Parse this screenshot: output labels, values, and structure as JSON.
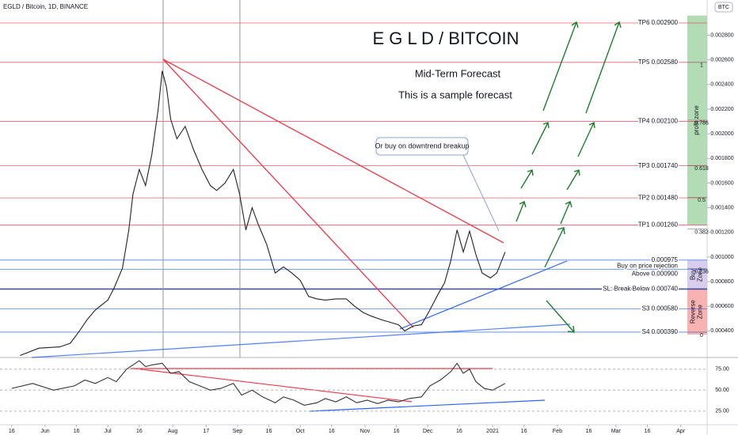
{
  "chart_data": [
    {
      "type": "line",
      "header": "EGLD / Bitcoin, 1D, BINANCE",
      "title": "E G L D / BITCOIN",
      "subtitle": [
        "Mid-Term Forecast",
        "This is a sample forecast"
      ],
      "currency": "BTC",
      "annotation": "Or buy on downtrend breakup",
      "color": "#222222",
      "x": [
        4,
        13,
        23,
        28,
        32,
        36,
        40,
        46,
        49,
        53,
        56,
        58,
        61,
        64,
        67,
        70,
        72,
        74,
        76,
        79,
        83,
        87,
        91,
        95,
        98,
        102,
        106,
        109,
        112,
        115,
        118,
        122,
        126,
        130,
        134,
        138,
        142,
        146,
        150,
        155,
        160,
        164,
        168,
        172,
        177,
        181,
        185,
        188,
        192,
        196,
        200,
        204,
        207,
        210,
        213,
        216,
        219,
        222,
        225,
        229,
        232,
        236
      ],
      "values": [
        0.0002,
        0.00026,
        0.00027,
        0.0003,
        0.00039,
        0.00049,
        0.00057,
        0.00065,
        0.00075,
        0.00091,
        0.00122,
        0.00151,
        0.00171,
        0.00158,
        0.00183,
        0.00219,
        0.00251,
        0.00238,
        0.00212,
        0.00196,
        0.00206,
        0.00187,
        0.00171,
        0.00158,
        0.00154,
        0.0016,
        0.00171,
        0.00151,
        0.00122,
        0.0014,
        0.00126,
        0.0011,
        0.00087,
        0.00092,
        0.00087,
        0.00081,
        0.00068,
        0.00066,
        0.00065,
        0.00066,
        0.00066,
        0.0006,
        0.00055,
        0.00052,
        0.00049,
        0.00047,
        0.00045,
        0.0004,
        0.00044,
        0.00045,
        0.00057,
        0.0007,
        0.00079,
        0.00097,
        0.00122,
        0.00104,
        0.00121,
        0.00102,
        0.00087,
        0.00083,
        0.00087,
        0.00104
      ],
      "xlim": [
        -5.6,
        332.6
      ],
      "ylim": [
        0.000197,
        0.003086
      ],
      "xticks": [
        {
          "value": 0,
          "label": "16"
        },
        {
          "value": 16,
          "label": "Jun"
        },
        {
          "value": 31,
          "label": "16"
        },
        {
          "value": 46,
          "label": "Jul"
        },
        {
          "value": 61,
          "label": "16"
        },
        {
          "value": 77,
          "label": "Aug"
        },
        {
          "value": 93,
          "label": "17"
        },
        {
          "value": 108,
          "label": "Sep"
        },
        {
          "value": 123,
          "label": "16"
        },
        {
          "value": 138,
          "label": "Oct"
        },
        {
          "value": 153,
          "label": "16"
        },
        {
          "value": 169,
          "label": "Nov"
        },
        {
          "value": 184,
          "label": "16"
        },
        {
          "value": 199,
          "label": "Dec"
        },
        {
          "value": 214,
          "label": "16"
        },
        {
          "value": 230,
          "label": "2021"
        },
        {
          "value": 245,
          "label": "16"
        },
        {
          "value": 261,
          "label": "Feb"
        },
        {
          "value": 276,
          "label": "16"
        },
        {
          "value": 289,
          "label": "Mar"
        },
        {
          "value": 304,
          "label": "16"
        },
        {
          "value": 320,
          "label": "Apr"
        }
      ],
      "yticks": [
        {
          "value": 0.0004,
          "label": "0.000400"
        },
        {
          "value": 0.0006,
          "label": "0.000600"
        },
        {
          "value": 0.0008,
          "label": "0.000800"
        },
        {
          "value": 0.001,
          "label": "0.001000"
        },
        {
          "value": 0.0012,
          "label": "0.001200"
        },
        {
          "value": 0.0014,
          "label": "0.001400"
        },
        {
          "value": 0.0016,
          "label": "0.001600"
        },
        {
          "value": 0.0018,
          "label": "0.001800"
        },
        {
          "value": 0.002,
          "label": "0.002000"
        },
        {
          "value": 0.0022,
          "label": "0.002200"
        },
        {
          "value": 0.0024,
          "label": "0.002400"
        },
        {
          "value": 0.0026,
          "label": "0.002600"
        },
        {
          "value": 0.0028,
          "label": "0.002800"
        }
      ],
      "levels": [
        {
          "label": [
            "TP6 0.002900"
          ],
          "value": 0.0029,
          "color": "#f23645"
        },
        {
          "label": [
            "TP5 0.002580"
          ],
          "value": 0.00258,
          "color": "#f23645"
        },
        {
          "label": [
            "TP4 0.002100"
          ],
          "value": 0.0021,
          "color": "#f23645"
        },
        {
          "label": [
            "TP3 0.001740"
          ],
          "value": 0.00174,
          "color": "#f23645"
        },
        {
          "label": [
            "TP2 0.001480"
          ],
          "value": 0.00148,
          "color": "#f23645"
        },
        {
          "label": [
            "TP1 0.001260"
          ],
          "value": 0.00126,
          "color": "#f23645"
        },
        {
          "label": [
            "0.000975"
          ],
          "value": 0.000975,
          "color": "#2962ff"
        },
        {
          "label": [
            "Buy on price rejection",
            "Above 0.000900"
          ],
          "value": 0.0009,
          "color": "#2962ff"
        },
        {
          "label": [
            "SL: Break Below 0.000740"
          ],
          "value": 0.00074,
          "color": "#1a2a8c"
        },
        {
          "label": [
            "S3 0.000580"
          ],
          "value": 0.00058,
          "color": "#2962ff"
        },
        {
          "label": [
            "S4 0.000390"
          ],
          "value": 0.00039,
          "color": "#2962ff"
        }
      ],
      "fib_levels": [
        {
          "ratio": 1,
          "price": 0.00258
        },
        {
          "ratio": 0.786,
          "price": 0.002111
        },
        {
          "ratio": 0.618,
          "price": 0.001743
        },
        {
          "ratio": 0.5,
          "price": 0.001485
        },
        {
          "ratio": 0.382,
          "price": 0.001227
        },
        {
          "ratio": 0.236,
          "price": 0.000907
        },
        {
          "ratio": 0,
          "price": 0.00039
        }
      ],
      "zones": [
        {
          "label": [
            "profit zone"
          ],
          "from": 0.00126,
          "to": 0.00296,
          "color": "#a5d6a7"
        },
        {
          "label": [
            "Buy",
            "Zone"
          ],
          "from": 0.00074,
          "to": 0.000975,
          "color": "#d1c4e9"
        },
        {
          "label": [
            "Reverse",
            "Zone"
          ],
          "from": 0.00037,
          "to": 0.00074,
          "color": "#f8a5a5"
        }
      ]
    },
    {
      "type": "line",
      "color": "#333333",
      "x": [
        0,
        10,
        20,
        30,
        35,
        40,
        46,
        50,
        55,
        58,
        61,
        64,
        67,
        72,
        76,
        80,
        85,
        90,
        95,
        100,
        106,
        110,
        115,
        120,
        126,
        130,
        135,
        140,
        146,
        150,
        155,
        160,
        165,
        170,
        175,
        180,
        185,
        190,
        196,
        200,
        205,
        210,
        213,
        216,
        219,
        222,
        226,
        230,
        236
      ],
      "values": [
        52,
        58,
        50,
        55,
        62,
        58,
        65,
        60,
        75,
        80,
        85,
        78,
        80,
        82,
        70,
        72,
        60,
        55,
        50,
        52,
        58,
        44,
        50,
        42,
        35,
        42,
        38,
        32,
        35,
        40,
        36,
        42,
        35,
        38,
        34,
        38,
        36,
        40,
        42,
        55,
        62,
        72,
        82,
        70,
        75,
        60,
        52,
        50,
        58
      ],
      "xlim": [
        -5.6,
        332.6
      ],
      "ylim": [
        6,
        86
      ],
      "yticks": [
        {
          "value": 75,
          "label": "75.00"
        },
        {
          "value": 50,
          "label": "50.00"
        },
        {
          "value": 25,
          "label": "25.00"
        }
      ]
    }
  ]
}
